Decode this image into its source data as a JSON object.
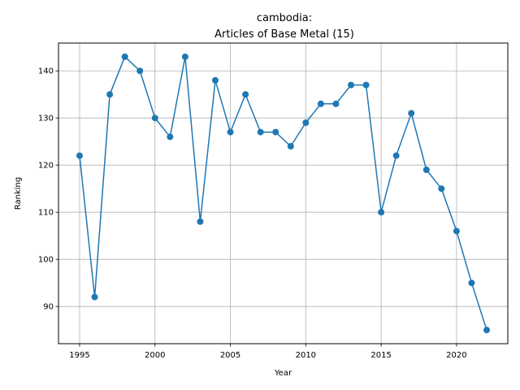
{
  "chart_data": {
    "type": "line",
    "title_line1": "cambodia:",
    "title_line2": "Articles of Base Metal (15)",
    "xlabel": "Year",
    "ylabel": "Ranking",
    "xlim": [
      1993.6,
      2023.4
    ],
    "ylim": [
      82.1,
      145.9
    ],
    "grid": true,
    "x_ticks": [
      1995,
      2000,
      2005,
      2010,
      2015,
      2020
    ],
    "y_ticks": [
      90,
      100,
      110,
      120,
      130,
      140
    ],
    "colors": {
      "line": "#1f77b4",
      "grid": "#b0b0b0"
    },
    "x": [
      1995,
      1996,
      1997,
      1998,
      1999,
      2000,
      2001,
      2002,
      2003,
      2004,
      2005,
      2006,
      2007,
      2008,
      2009,
      2010,
      2011,
      2012,
      2013,
      2014,
      2015,
      2016,
      2017,
      2018,
      2019,
      2020,
      2021,
      2022
    ],
    "values": [
      122,
      92,
      135,
      143,
      140,
      130,
      126,
      143,
      108,
      138,
      127,
      135,
      127,
      127,
      124,
      129,
      133,
      133,
      137,
      137,
      110,
      122,
      131,
      119,
      115,
      106,
      95,
      85
    ]
  }
}
